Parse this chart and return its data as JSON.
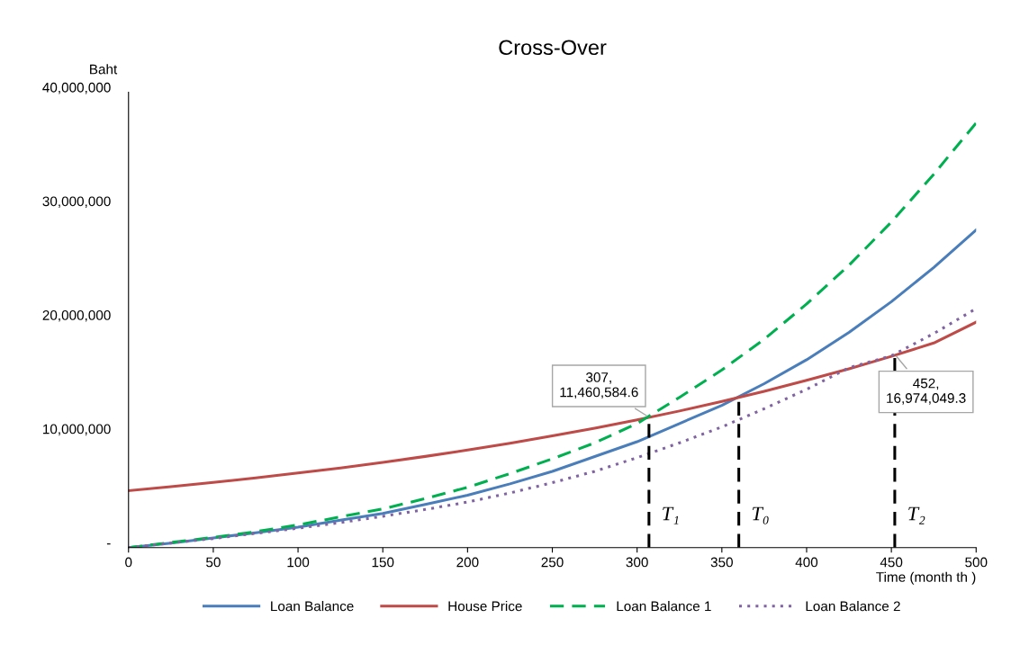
{
  "chart_data": {
    "type": "line",
    "title": "Cross-Over",
    "xlabel": "Time (month th )",
    "ylabel": "Baht",
    "x": [
      0,
      25,
      50,
      75,
      100,
      125,
      150,
      175,
      200,
      225,
      250,
      275,
      300,
      325,
      350,
      375,
      400,
      425,
      450,
      475,
      500
    ],
    "series": [
      {
        "name": "Loan Balance",
        "color": "#4a7ebb",
        "line_style": "solid",
        "values": [
          0,
          400000,
          850000,
          1300000,
          1800000,
          2400000,
          3000000,
          3800000,
          4600000,
          5600000,
          6700000,
          8000000,
          9300000,
          10900000,
          12500000,
          14400000,
          16500000,
          18900000,
          21600000,
          24600000,
          27900000
        ]
      },
      {
        "name": "House Price",
        "color": "#be4b48",
        "line_style": "solid",
        "values": [
          5000000,
          5350000,
          5720000,
          6120000,
          6550000,
          7000000,
          7490000,
          8010000,
          8570000,
          9170000,
          9810000,
          10490000,
          11220000,
          12000000,
          12840000,
          13730000,
          14690000,
          15710000,
          16800000,
          17970000,
          19800000
        ]
      },
      {
        "name": "Loan Balance 1",
        "color": "#00b050",
        "line_style": "dashed",
        "values": [
          0,
          450000,
          900000,
          1400000,
          2000000,
          2700000,
          3400000,
          4300000,
          5300000,
          6500000,
          7800000,
          9200000,
          10900000,
          13200000,
          15600000,
          18300000,
          21400000,
          24800000,
          28600000,
          32800000,
          37300000
        ]
      },
      {
        "name": "Loan Balance 2",
        "color": "#8064a2",
        "line_style": "dotted",
        "values": [
          0,
          400000,
          800000,
          1250000,
          1700000,
          2200000,
          2750000,
          3350000,
          4000000,
          4800000,
          5700000,
          6700000,
          7900000,
          9200000,
          10600000,
          12200000,
          13900000,
          15800000,
          16850000,
          18800000,
          21000000
        ]
      }
    ],
    "xlim": [
      0,
      500
    ],
    "xticks": [
      0,
      50,
      100,
      150,
      200,
      250,
      300,
      350,
      400,
      450,
      500
    ],
    "ylim": [
      0,
      40000000
    ],
    "yticks": [
      {
        "value": 0,
        "label": "-"
      },
      {
        "value": 10000000,
        "label": "10,000,000"
      },
      {
        "value": 20000000,
        "label": "20,000,000"
      },
      {
        "value": 30000000,
        "label": "30,000,000"
      },
      {
        "value": 40000000,
        "label": "40,000,000"
      }
    ],
    "ref_lines": [
      {
        "axis": "x",
        "value": 307,
        "label": "T₁",
        "color": "#000000",
        "line_style": "dashed"
      },
      {
        "axis": "x",
        "value": 360,
        "label": "T₀",
        "color": "#000000",
        "line_style": "dashed"
      },
      {
        "axis": "x",
        "value": 452,
        "label": "T₂",
        "color": "#000000",
        "line_style": "dashed"
      }
    ],
    "annotations": [
      {
        "text": "307,\n11,460,584.6",
        "x": 307,
        "y": 11460584.6
      },
      {
        "text": "452,\n16,974,049.3",
        "x": 452,
        "y": 16974049.3
      }
    ],
    "grid": false,
    "legend": "bottom"
  }
}
